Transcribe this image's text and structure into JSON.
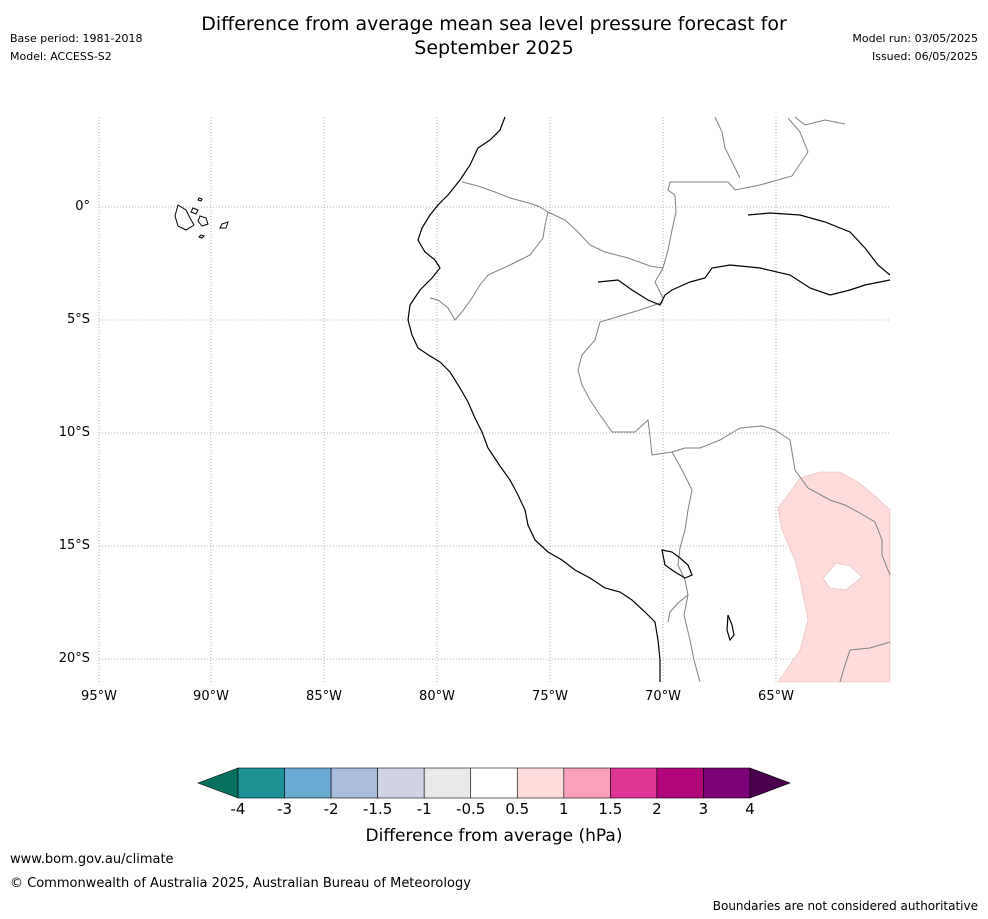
{
  "title_line1": "Difference from average mean sea level pressure forecast for",
  "title_line2": "September 2025",
  "meta_left": {
    "base_period": "Base period: 1981-2018",
    "model": "Model: ACCESS-S2"
  },
  "meta_right": {
    "model_run": "Model run: 03/05/2025",
    "issued": "Issued: 06/05/2025"
  },
  "map": {
    "lat_labels": [
      "0°",
      "5°S",
      "10°S",
      "15°S",
      "20°S"
    ],
    "lon_labels": [
      "95°W",
      "90°W",
      "85°W",
      "80°W",
      "75°W",
      "70°W",
      "65°W"
    ],
    "anomaly_color": "#fddcdb",
    "coast_color": "#000000",
    "border_color": "#808080"
  },
  "colorbar": {
    "ticks": [
      "-4",
      "-3",
      "-2",
      "-1.5",
      "-1",
      "-0.5",
      "0.5",
      "1",
      "1.5",
      "2",
      "3",
      "4"
    ],
    "colors": [
      "#08705f",
      "#1a9296",
      "#6aaad2",
      "#a9bcdb",
      "#d0d2e6",
      "#e9e9eb",
      "#ffffff",
      "#fddcdb",
      "#f9a0bb",
      "#df3597",
      "#b10579",
      "#7d0277",
      "#4a004f"
    ],
    "label": "Difference from average (hPa)"
  },
  "footer": {
    "website": "www.bom.gov.au/climate",
    "copyright": "© Commonwealth of Australia 2025, Australian Bureau of Meteorology",
    "disclaimer": "Boundaries are not considered authoritative"
  }
}
